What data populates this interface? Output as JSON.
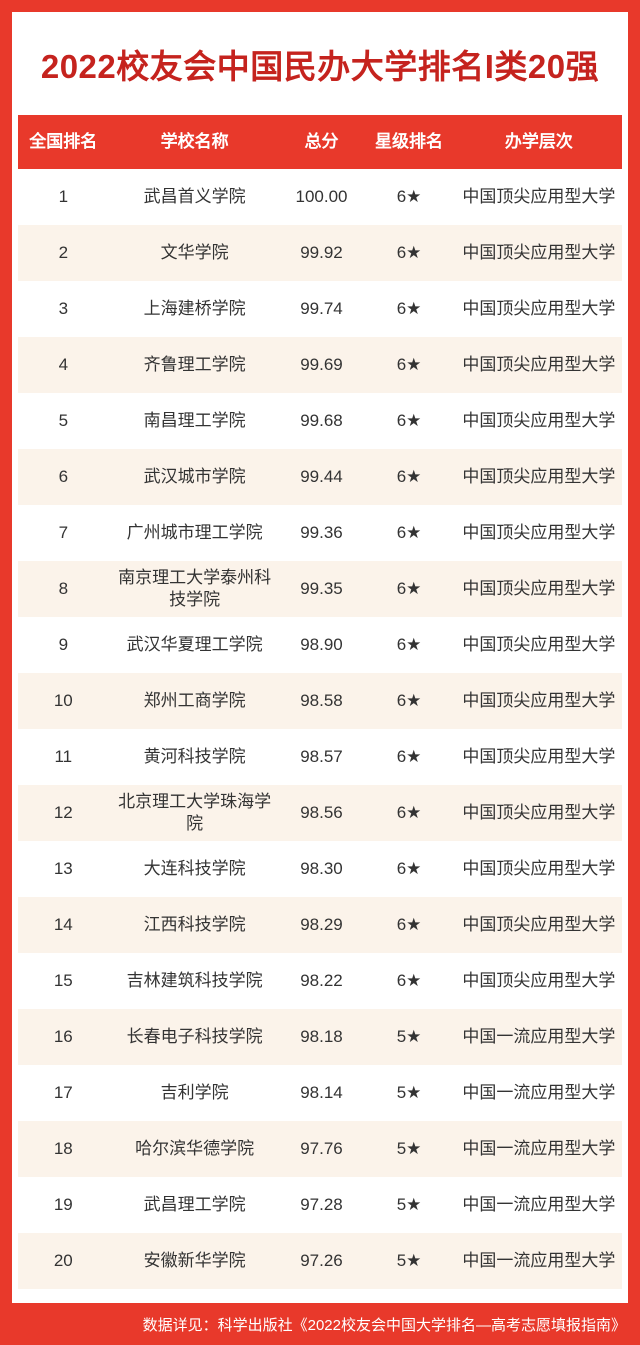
{
  "title": "2022校友会中国民办大学排名I类20强",
  "colors": {
    "accent_red": "#E8392B",
    "title_red": "#C5231E",
    "row_alt_cream": "#FBF3EA",
    "body_text": "#333333",
    "header_text": "#FFFFFF"
  },
  "table": {
    "columns": [
      "全国排名",
      "学校名称",
      "总分",
      "星级排名",
      "办学层次"
    ],
    "rows": [
      {
        "rank": "1",
        "name": "武昌首义学院",
        "score": "100.00",
        "stars": "6★",
        "level": "中国顶尖应用型大学"
      },
      {
        "rank": "2",
        "name": "文华学院",
        "score": "99.92",
        "stars": "6★",
        "level": "中国顶尖应用型大学"
      },
      {
        "rank": "3",
        "name": "上海建桥学院",
        "score": "99.74",
        "stars": "6★",
        "level": "中国顶尖应用型大学"
      },
      {
        "rank": "4",
        "name": "齐鲁理工学院",
        "score": "99.69",
        "stars": "6★",
        "level": "中国顶尖应用型大学"
      },
      {
        "rank": "5",
        "name": "南昌理工学院",
        "score": "99.68",
        "stars": "6★",
        "level": "中国顶尖应用型大学"
      },
      {
        "rank": "6",
        "name": "武汉城市学院",
        "score": "99.44",
        "stars": "6★",
        "level": "中国顶尖应用型大学"
      },
      {
        "rank": "7",
        "name": "广州城市理工学院",
        "score": "99.36",
        "stars": "6★",
        "level": "中国顶尖应用型大学"
      },
      {
        "rank": "8",
        "name": "南京理工大学泰州科技学院",
        "score": "99.35",
        "stars": "6★",
        "level": "中国顶尖应用型大学"
      },
      {
        "rank": "9",
        "name": "武汉华夏理工学院",
        "score": "98.90",
        "stars": "6★",
        "level": "中国顶尖应用型大学"
      },
      {
        "rank": "10",
        "name": "郑州工商学院",
        "score": "98.58",
        "stars": "6★",
        "level": "中国顶尖应用型大学"
      },
      {
        "rank": "11",
        "name": "黄河科技学院",
        "score": "98.57",
        "stars": "6★",
        "level": "中国顶尖应用型大学"
      },
      {
        "rank": "12",
        "name": "北京理工大学珠海学院",
        "score": "98.56",
        "stars": "6★",
        "level": "中国顶尖应用型大学"
      },
      {
        "rank": "13",
        "name": "大连科技学院",
        "score": "98.30",
        "stars": "6★",
        "level": "中国顶尖应用型大学"
      },
      {
        "rank": "14",
        "name": "江西科技学院",
        "score": "98.29",
        "stars": "6★",
        "level": "中国顶尖应用型大学"
      },
      {
        "rank": "15",
        "name": "吉林建筑科技学院",
        "score": "98.22",
        "stars": "6★",
        "level": "中国顶尖应用型大学"
      },
      {
        "rank": "16",
        "name": "长春电子科技学院",
        "score": "98.18",
        "stars": "5★",
        "level": "中国一流应用型大学"
      },
      {
        "rank": "17",
        "name": "吉利学院",
        "score": "98.14",
        "stars": "5★",
        "level": "中国一流应用型大学"
      },
      {
        "rank": "18",
        "name": "哈尔滨华德学院",
        "score": "97.76",
        "stars": "5★",
        "level": "中国一流应用型大学"
      },
      {
        "rank": "19",
        "name": "武昌理工学院",
        "score": "97.28",
        "stars": "5★",
        "level": "中国一流应用型大学"
      },
      {
        "rank": "20",
        "name": "安徽新华学院",
        "score": "97.26",
        "stars": "5★",
        "level": "中国一流应用型大学"
      }
    ]
  },
  "footer": {
    "note": "数据详见：科学出版社《2022校友会中国大学排名—高考志愿填报指南》"
  }
}
